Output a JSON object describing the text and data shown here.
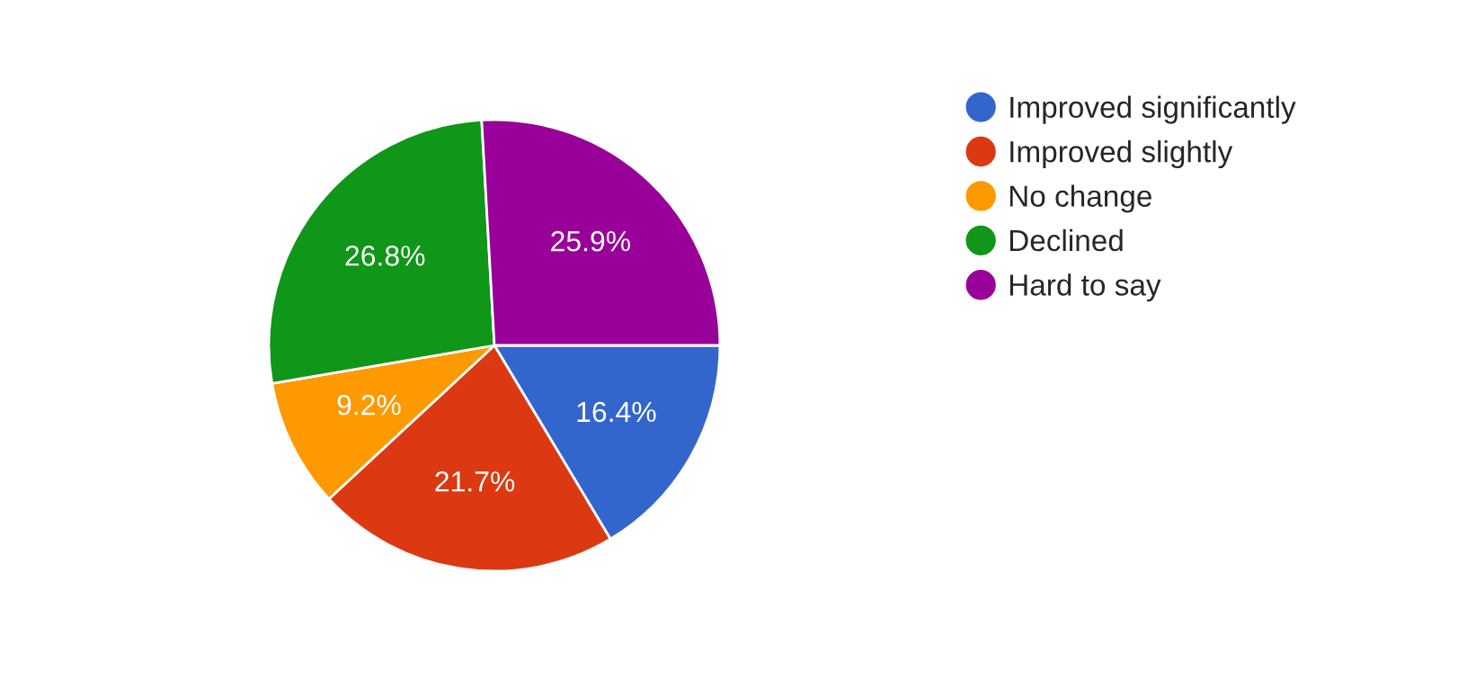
{
  "chart_data": {
    "type": "pie",
    "categories": [
      "Improved significantly",
      "Improved slightly",
      "No change",
      "Declined",
      "Hard to say"
    ],
    "values": [
      16.4,
      21.7,
      9.2,
      26.8,
      25.9
    ],
    "colors": [
      "#3366cc",
      "#dc3912",
      "#ff9900",
      "#109618",
      "#990099"
    ],
    "value_labels": [
      "16.4%",
      "21.7%",
      "9.2%",
      "26.8%",
      "25.9%"
    ],
    "legend": "top right"
  }
}
